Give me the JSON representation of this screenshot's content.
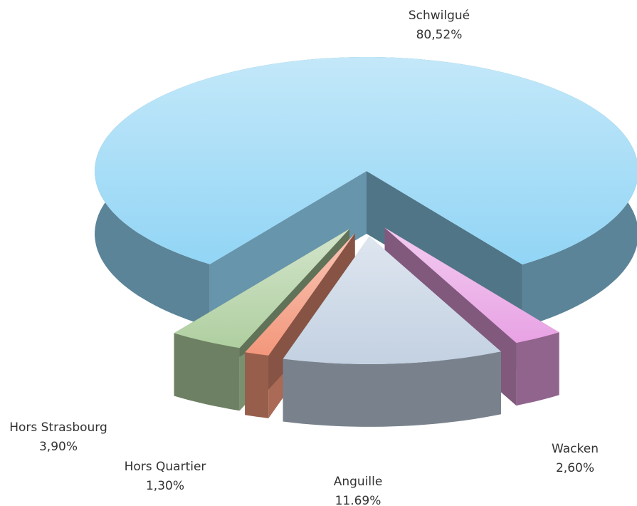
{
  "chart_data": {
    "type": "pie3d",
    "categories": [
      "Schwilgué",
      "Wacken",
      "Anguille",
      "Hors Quartier",
      "Hors Strasbourg"
    ],
    "values": [
      80.52,
      2.6,
      11.69,
      1.3,
      3.9
    ],
    "value_labels": [
      "80,52%",
      "2,60%",
      "11.69%",
      "1,30%",
      "3,90%"
    ],
    "colors": [
      "#92d5f5",
      "#e8a2e4",
      "#c3d1e2",
      "#f3977b",
      "#afcfa0"
    ]
  }
}
